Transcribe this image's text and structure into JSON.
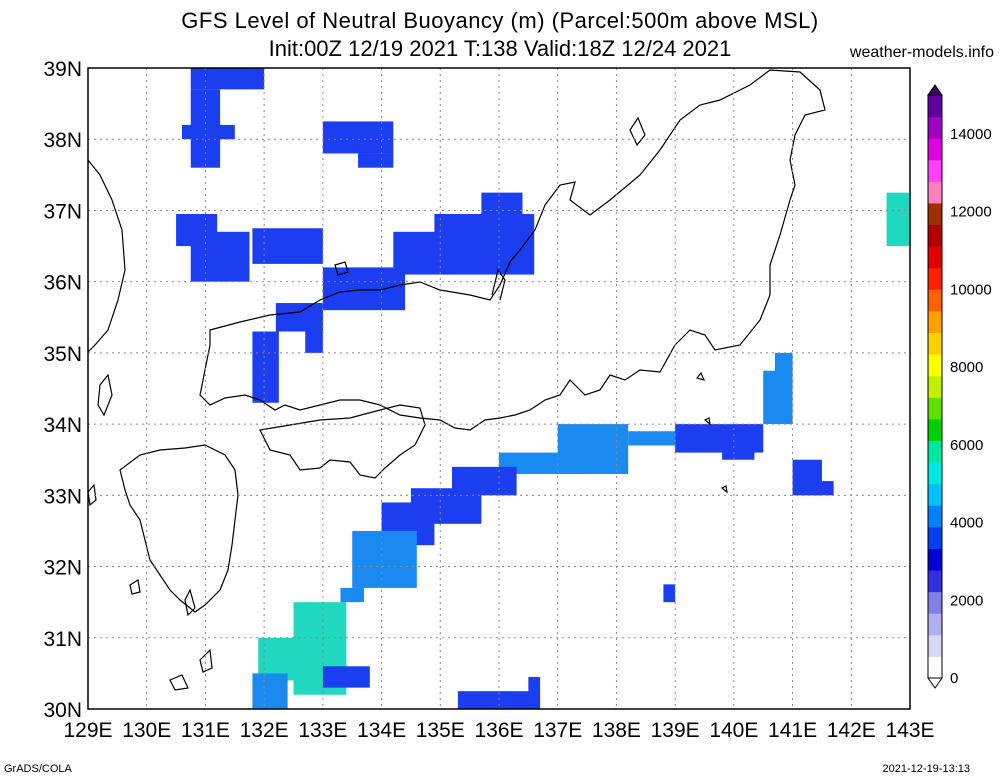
{
  "title_line1": "GFS Level of Neutral Buoyancy (m) (Parcel:500m above MSL)",
  "title_line2": "Init:00Z 12/19 2021 T:138 Valid:18Z 12/24 2021",
  "site": "weather-models.info",
  "footer_left": "GrADS/COLA",
  "footer_right": "2021-12-19-13:13",
  "lat_labels": [
    "39N",
    "38N",
    "37N",
    "36N",
    "35N",
    "34N",
    "33N",
    "32N",
    "31N",
    "30N"
  ],
  "lon_labels": [
    "129E",
    "130E",
    "131E",
    "132E",
    "133E",
    "134E",
    "135E",
    "136E",
    "137E",
    "138E",
    "139E",
    "140E",
    "141E",
    "142E",
    "143E"
  ],
  "colorbar": {
    "labels": [
      "0",
      "2000",
      "4000",
      "6000",
      "8000",
      "10000",
      "12000",
      "14000"
    ],
    "colors": [
      "#ffffff",
      "#d8d8f8",
      "#b0b0f0",
      "#8080e8",
      "#3030e0",
      "#0000d8",
      "#0040f0",
      "#0080ff",
      "#00c0ff",
      "#00e8e0",
      "#00e8a0",
      "#00d000",
      "#60e000",
      "#c0f000",
      "#ffff00",
      "#ffd000",
      "#ffa000",
      "#ff6000",
      "#ff2000",
      "#e00000",
      "#b00000",
      "#a03000",
      "#ff80c0",
      "#ff40ff",
      "#e000e0",
      "#a000c0",
      "#6000a0"
    ]
  },
  "map": {
    "lon_range": [
      129,
      143
    ],
    "lat_range": [
      30,
      39
    ],
    "grid": true,
    "precip_cells_color_main": "#1a3ef0",
    "precip_cells_color_light": "#1a8af0",
    "precip_cells_color_cyan": "#20d8c0",
    "coast_color": "#000000"
  }
}
